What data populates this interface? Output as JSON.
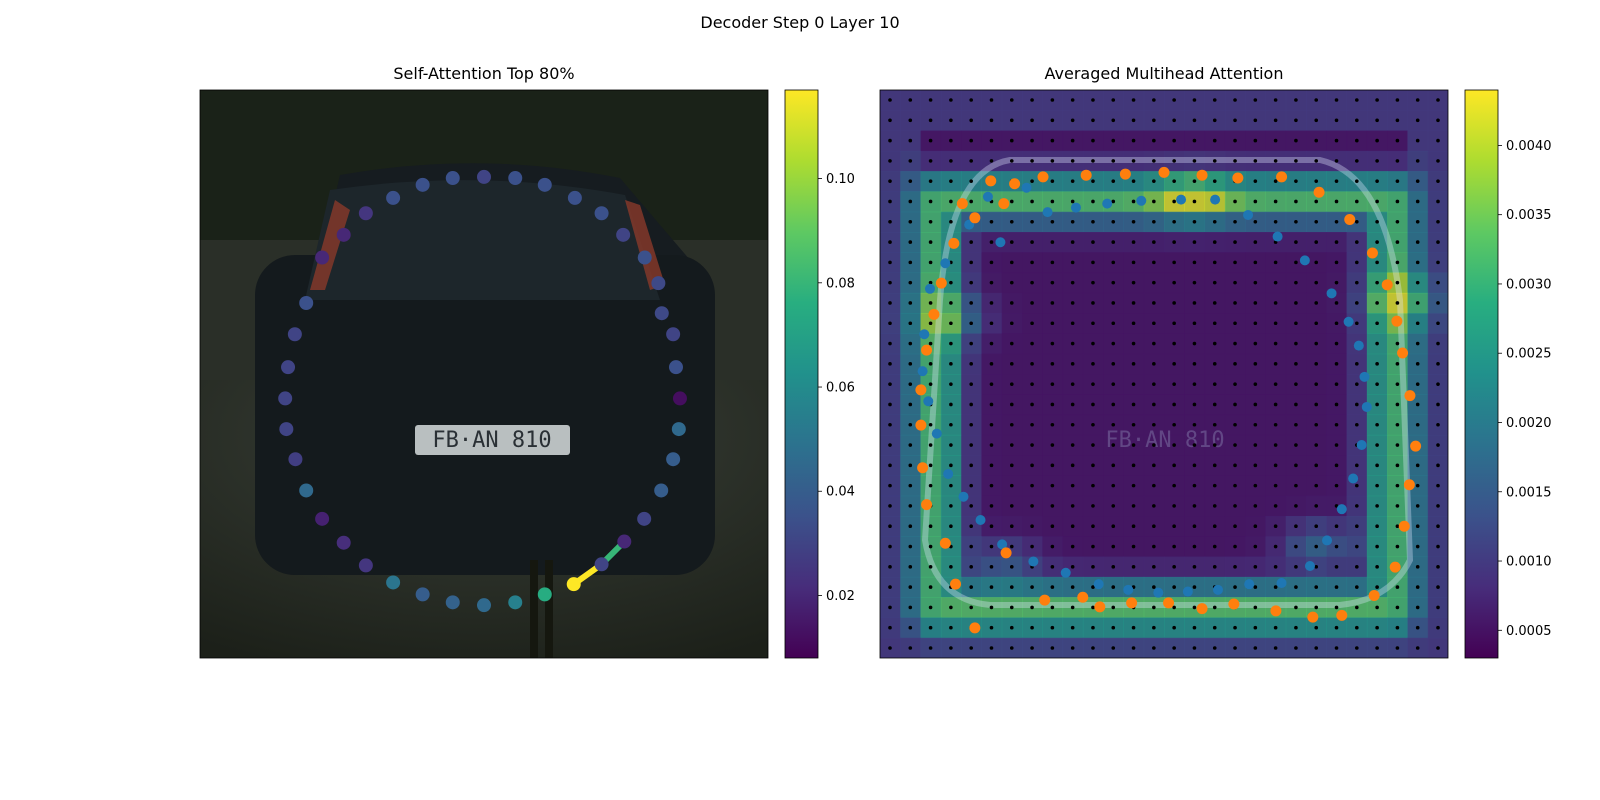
{
  "figure": {
    "suptitle": "Decoder Step 0 Layer 10"
  },
  "chart_data": [
    {
      "type": "scatter",
      "title": "Self-Attention Top 80%",
      "background": "photo of rear of dark hatchback car on street (license plate FB AN 810)",
      "colormap": "viridis",
      "colorbar": {
        "ticks": [
          0.02,
          0.04,
          0.06,
          0.08,
          0.1
        ],
        "tick_labels": [
          "0.02",
          "0.04",
          "0.06",
          "0.08",
          "0.10"
        ],
        "range": [
          0.008,
          0.117
        ]
      },
      "points": [
        [
          0.5,
          0.153,
          0.03
        ],
        [
          0.555,
          0.155,
          0.035
        ],
        [
          0.607,
          0.167,
          0.035
        ],
        [
          0.66,
          0.19,
          0.035
        ],
        [
          0.707,
          0.217,
          0.035
        ],
        [
          0.745,
          0.255,
          0.03
        ],
        [
          0.783,
          0.295,
          0.035
        ],
        [
          0.807,
          0.34,
          0.032
        ],
        [
          0.813,
          0.393,
          0.032
        ],
        [
          0.833,
          0.43,
          0.03
        ],
        [
          0.838,
          0.488,
          0.035
        ],
        [
          0.845,
          0.543,
          0.012
        ],
        [
          0.843,
          0.597,
          0.045
        ],
        [
          0.833,
          0.65,
          0.04
        ],
        [
          0.812,
          0.705,
          0.04
        ],
        [
          0.782,
          0.755,
          0.03
        ],
        [
          0.747,
          0.795,
          0.02
        ],
        [
          0.707,
          0.835,
          0.03
        ],
        [
          0.658,
          0.87,
          0.117
        ],
        [
          0.607,
          0.888,
          0.075
        ],
        [
          0.555,
          0.902,
          0.055
        ],
        [
          0.5,
          0.907,
          0.045
        ],
        [
          0.445,
          0.902,
          0.042
        ],
        [
          0.392,
          0.888,
          0.04
        ],
        [
          0.34,
          0.867,
          0.05
        ],
        [
          0.292,
          0.837,
          0.025
        ],
        [
          0.253,
          0.797,
          0.022
        ],
        [
          0.215,
          0.755,
          0.018
        ],
        [
          0.187,
          0.705,
          0.045
        ],
        [
          0.168,
          0.65,
          0.028
        ],
        [
          0.152,
          0.597,
          0.03
        ],
        [
          0.15,
          0.543,
          0.03
        ],
        [
          0.155,
          0.488,
          0.03
        ],
        [
          0.167,
          0.43,
          0.03
        ],
        [
          0.187,
          0.375,
          0.035
        ],
        [
          0.215,
          0.295,
          0.02
        ],
        [
          0.253,
          0.255,
          0.02
        ],
        [
          0.292,
          0.217,
          0.025
        ],
        [
          0.34,
          0.19,
          0.035
        ],
        [
          0.392,
          0.167,
          0.035
        ],
        [
          0.445,
          0.155,
          0.035
        ]
      ],
      "edges": [
        [
          [
            0.658,
            0.87
          ],
          [
            0.707,
            0.835
          ],
          0.117
        ],
        [
          [
            0.707,
            0.835
          ],
          [
            0.747,
            0.795
          ],
          0.08
        ]
      ]
    },
    {
      "type": "heatmap",
      "title": "Averaged Multihead Attention",
      "background": "same car photo overlaid with averaged attention heatmap",
      "colormap": "viridis",
      "colorbar": {
        "ticks": [
          0.0005,
          0.001,
          0.0015,
          0.002,
          0.0025,
          0.003,
          0.0035,
          0.004
        ],
        "tick_labels": [
          "0.0005",
          "0.0010",
          "0.0015",
          "0.0020",
          "0.0025",
          "0.0030",
          "0.0035",
          "0.0040"
        ],
        "range": [
          0.0003,
          0.0044
        ]
      },
      "grid_size": 28,
      "orange_points": [
        [
          0.195,
          0.16
        ],
        [
          0.237,
          0.165
        ],
        [
          0.287,
          0.153
        ],
        [
          0.363,
          0.15
        ],
        [
          0.432,
          0.148
        ],
        [
          0.5,
          0.145
        ],
        [
          0.567,
          0.15
        ],
        [
          0.63,
          0.155
        ],
        [
          0.707,
          0.153
        ],
        [
          0.773,
          0.18
        ],
        [
          0.827,
          0.228
        ],
        [
          0.867,
          0.287
        ],
        [
          0.893,
          0.343
        ],
        [
          0.91,
          0.407
        ],
        [
          0.92,
          0.463
        ],
        [
          0.933,
          0.538
        ],
        [
          0.943,
          0.627
        ],
        [
          0.932,
          0.695
        ],
        [
          0.923,
          0.768
        ],
        [
          0.907,
          0.84
        ],
        [
          0.87,
          0.89
        ],
        [
          0.813,
          0.925
        ],
        [
          0.762,
          0.928
        ],
        [
          0.697,
          0.917
        ],
        [
          0.623,
          0.905
        ],
        [
          0.567,
          0.913
        ],
        [
          0.508,
          0.903
        ],
        [
          0.443,
          0.903
        ],
        [
          0.387,
          0.91
        ],
        [
          0.357,
          0.893
        ],
        [
          0.29,
          0.898
        ],
        [
          0.222,
          0.815
        ],
        [
          0.167,
          0.947
        ],
        [
          0.133,
          0.87
        ],
        [
          0.115,
          0.798
        ],
        [
          0.082,
          0.73
        ],
        [
          0.075,
          0.665
        ],
        [
          0.072,
          0.59
        ],
        [
          0.072,
          0.528
        ],
        [
          0.082,
          0.458
        ],
        [
          0.095,
          0.395
        ],
        [
          0.108,
          0.34
        ],
        [
          0.13,
          0.27
        ],
        [
          0.167,
          0.225
        ],
        [
          0.218,
          0.2
        ],
        [
          0.145,
          0.2
        ]
      ],
      "blue_points": [
        [
          0.295,
          0.215
        ],
        [
          0.345,
          0.207
        ],
        [
          0.4,
          0.2
        ],
        [
          0.46,
          0.195
        ],
        [
          0.53,
          0.193
        ],
        [
          0.59,
          0.193
        ],
        [
          0.648,
          0.22
        ],
        [
          0.7,
          0.258
        ],
        [
          0.748,
          0.3
        ],
        [
          0.795,
          0.358
        ],
        [
          0.825,
          0.408
        ],
        [
          0.843,
          0.45
        ],
        [
          0.853,
          0.505
        ],
        [
          0.857,
          0.558
        ],
        [
          0.848,
          0.625
        ],
        [
          0.833,
          0.684
        ],
        [
          0.813,
          0.738
        ],
        [
          0.787,
          0.793
        ],
        [
          0.757,
          0.838
        ],
        [
          0.707,
          0.868
        ],
        [
          0.65,
          0.87
        ],
        [
          0.595,
          0.88
        ],
        [
          0.542,
          0.883
        ],
        [
          0.49,
          0.885
        ],
        [
          0.437,
          0.88
        ],
        [
          0.385,
          0.87
        ],
        [
          0.327,
          0.85
        ],
        [
          0.27,
          0.83
        ],
        [
          0.215,
          0.8
        ],
        [
          0.177,
          0.757
        ],
        [
          0.147,
          0.716
        ],
        [
          0.12,
          0.676
        ],
        [
          0.1,
          0.605
        ],
        [
          0.085,
          0.548
        ],
        [
          0.075,
          0.495
        ],
        [
          0.078,
          0.43
        ],
        [
          0.088,
          0.35
        ],
        [
          0.115,
          0.305
        ],
        [
          0.157,
          0.237
        ],
        [
          0.19,
          0.188
        ],
        [
          0.258,
          0.172
        ],
        [
          0.212,
          0.268
        ]
      ]
    }
  ]
}
